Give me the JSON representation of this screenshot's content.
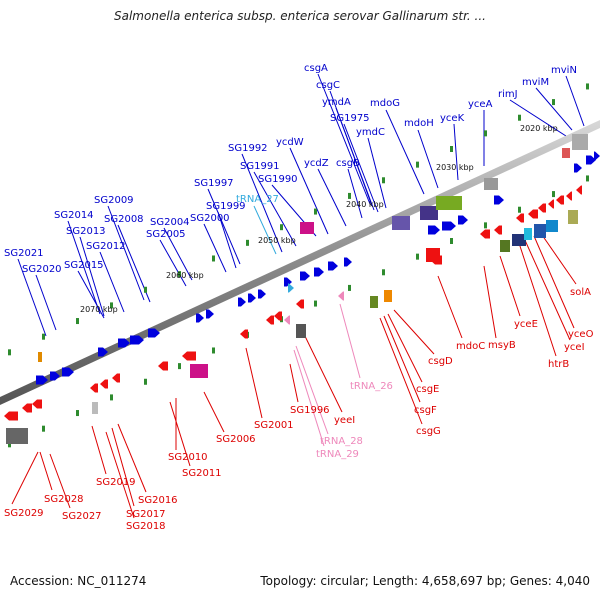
{
  "title": "Salmonella enterica subsp. enterica serovar Gallinarum str. ...",
  "footer": {
    "accession": "Accession: NC_011274",
    "stats": "Topology: circular; Length: 4,658,697 bp; Genes: 4,040"
  },
  "colors": {
    "forward_label": "#0000cc",
    "reverse_label": "#dd0000",
    "trna_forward": "#33aadd",
    "trna_reverse": "#ee88bb",
    "backbone": "#888888",
    "tick": "#2e8b2e"
  },
  "scale_labels": [
    "2020 kbp",
    "2030 kbp",
    "2040 kbp",
    "2050 kbp",
    "2060 kbp",
    "2070 kbp"
  ],
  "forward_labels": [
    "mviN",
    "mviM",
    "rimJ",
    "yceA",
    "yceK",
    "mdoH",
    "mdoG",
    "csgA",
    "csgC",
    "ymdA",
    "SG1975",
    "ymdC",
    "csgB",
    "ycdZ",
    "ycdW",
    "SG1990",
    "SG1991",
    "SG1992",
    "tRNA_27",
    "SG1997",
    "SG1999",
    "SG2000",
    "SG2004",
    "SG2005",
    "SG2008",
    "SG2009",
    "SG2012",
    "SG2013",
    "SG2014",
    "SG2015",
    "SG2020",
    "SG2021"
  ],
  "reverse_labels": [
    "solA",
    "yceO",
    "yceI",
    "htrB",
    "yceE",
    "msyB",
    "mdoC",
    "csgD",
    "csgE",
    "csgF",
    "csgG",
    "tRNA_26",
    "yeeI",
    "tRNA_28",
    "tRNA_29",
    "SG1996",
    "SG2001",
    "SG2006",
    "SG2010",
    "SG2011",
    "SG2016",
    "SG2017",
    "SG2018",
    "SG2019",
    "SG2027",
    "SG2028",
    "SG2029"
  ]
}
